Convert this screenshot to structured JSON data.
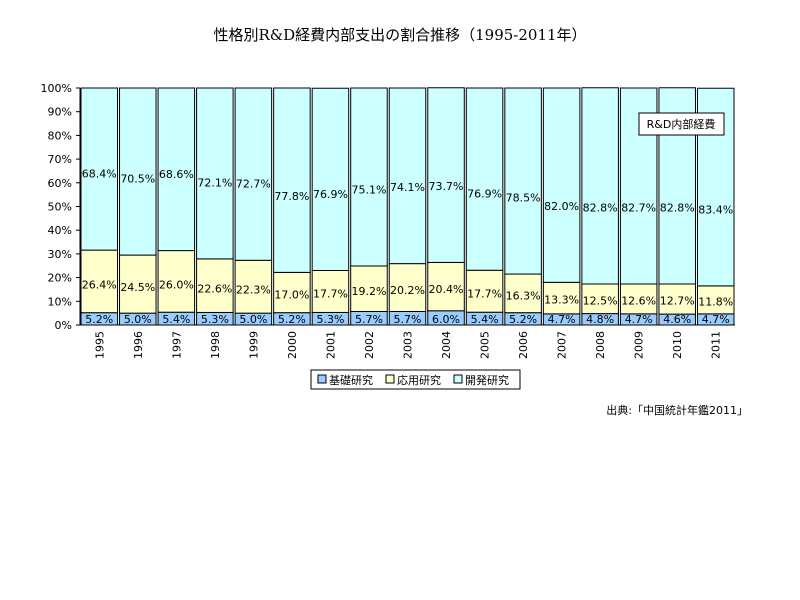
{
  "chart_data": {
    "type": "bar",
    "stacked": true,
    "title": "性格別R&D経費内部支出の割合推移（1995-2011年）",
    "ylim": [
      0,
      100
    ],
    "yticks": [
      "0%",
      "10%",
      "20%",
      "30%",
      "40%",
      "50%",
      "60%",
      "70%",
      "80%",
      "90%",
      "100%"
    ],
    "categories": [
      "1995",
      "1996",
      "1997",
      "1998",
      "1999",
      "2000",
      "2001",
      "2002",
      "2003",
      "2004",
      "2005",
      "2006",
      "2007",
      "2008",
      "2009",
      "2010",
      "2011"
    ],
    "series": [
      {
        "name": "基礎研究",
        "color": "#99CCFF",
        "values": [
          5.2,
          5.0,
          5.4,
          5.3,
          5.0,
          5.2,
          5.3,
          5.7,
          5.7,
          6.0,
          5.4,
          5.2,
          4.7,
          4.8,
          4.7,
          4.6,
          4.7
        ],
        "labels": [
          "5.2%",
          "5.0%",
          "5.4%",
          "5.3%",
          "5.0%",
          "5.2%",
          "5.3%",
          "5.7%",
          "5.7%",
          "6.0%",
          "5.4%",
          "5.2%",
          "4.7%",
          "4.8%",
          "4.7%",
          "4.6%",
          "4.7%"
        ]
      },
      {
        "name": "応用研究",
        "color": "#FFFFCC",
        "values": [
          26.4,
          24.5,
          26.0,
          22.6,
          22.3,
          17.0,
          17.7,
          19.2,
          20.2,
          20.4,
          17.7,
          16.3,
          13.3,
          12.5,
          12.6,
          12.7,
          11.8
        ],
        "labels": [
          "26.4%",
          "24.5%",
          "26.0%",
          "22.6%",
          "22.3%",
          "17.0%",
          "17.7%",
          "19.2%",
          "20.2%",
          "20.4%",
          "17.7%",
          "16.3%",
          "13.3%",
          "12.5%",
          "12.6%",
          "12.7%",
          "11.8%"
        ]
      },
      {
        "name": "開発研究",
        "color": "#CCFFFF",
        "values": [
          68.4,
          70.5,
          68.6,
          72.1,
          72.7,
          77.8,
          76.9,
          75.1,
          74.1,
          73.7,
          76.9,
          78.5,
          82.0,
          82.8,
          82.7,
          82.8,
          83.4
        ],
        "labels": [
          "68.4%",
          "70.5%",
          "68.6%",
          "72.1%",
          "72.7%",
          "77.8%",
          "76.9%",
          "75.1%",
          "74.1%",
          "73.7%",
          "76.9%",
          "78.5%",
          "82.0%",
          "82.8%",
          "82.7%",
          "82.8%",
          "83.4%"
        ]
      }
    ],
    "annotation": "R&D内部経費",
    "legend_position": "bottom",
    "grid": false,
    "source": "出典:「中国統計年鑑2011」"
  }
}
